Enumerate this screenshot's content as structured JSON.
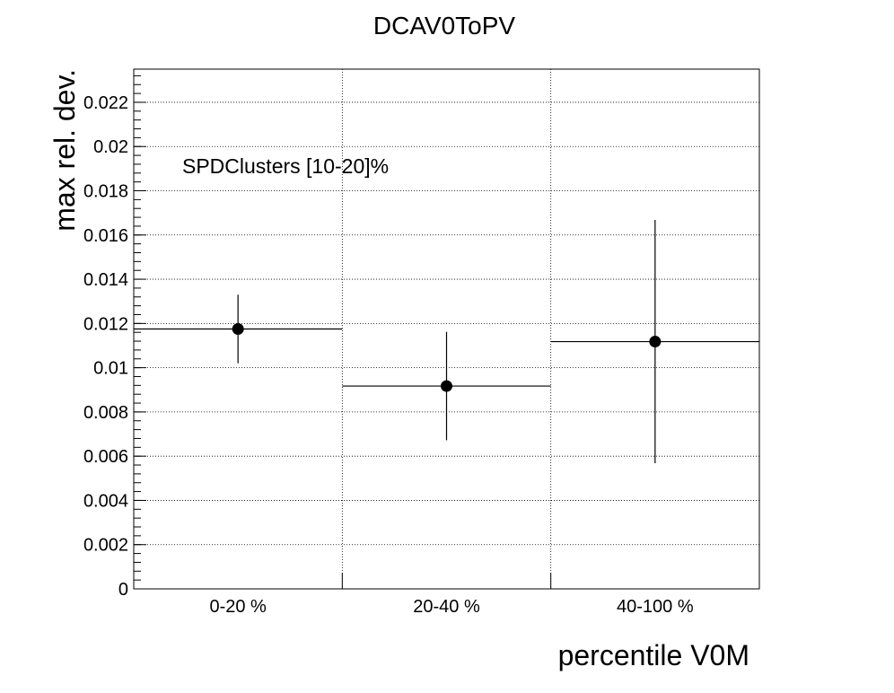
{
  "chart_data": {
    "type": "scatter",
    "title": "DCAV0ToPV",
    "xlabel": "percentile V0M",
    "ylabel": "max rel. dev.",
    "annotation": "SPDClusters [10-20]%",
    "categories": [
      "0-20 %",
      "20-40 %",
      "40-100 %"
    ],
    "values": [
      0.01175,
      0.00917,
      0.01118
    ],
    "errors": [
      0.00155,
      0.00245,
      0.0055
    ],
    "ylim": [
      0,
      0.0235
    ],
    "yticks": [
      0,
      0.002,
      0.004,
      0.006,
      0.008,
      0.01,
      0.012,
      0.014,
      0.016,
      0.018,
      0.02,
      0.022
    ],
    "ytick_labels": [
      "0",
      "0.002",
      "0.004",
      "0.006",
      "0.008",
      "0.01",
      "0.012",
      "0.014",
      "0.016",
      "0.018",
      "0.02",
      "0.022"
    ],
    "grid": true,
    "marker_color": "#000000"
  }
}
